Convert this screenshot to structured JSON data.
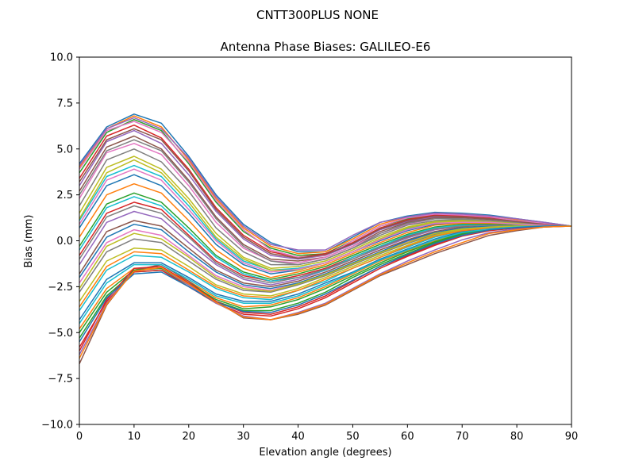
{
  "figure": {
    "suptitle": "CNTT300PLUS     NONE"
  },
  "chart_data": {
    "type": "line",
    "title": "Antenna Phase Biases: GALILEO-E6",
    "xlabel": "Elevation angle (degrees)",
    "ylabel": "Bias (mm)",
    "xlim": [
      0,
      90
    ],
    "ylim": [
      -10,
      10
    ],
    "xticks": [
      0,
      10,
      20,
      30,
      40,
      50,
      60,
      70,
      80,
      90
    ],
    "yticks": [
      -10.0,
      -7.5,
      -5.0,
      -2.5,
      0.0,
      2.5,
      5.0,
      7.5,
      10.0
    ],
    "xtick_labels": [
      "0",
      "10",
      "20",
      "30",
      "40",
      "50",
      "60",
      "70",
      "80",
      "90"
    ],
    "ytick_labels": [
      "−10.0",
      "−7.5",
      "−5.0",
      "−2.5",
      "0.0",
      "2.5",
      "5.0",
      "7.5",
      "10.0"
    ],
    "grid": false,
    "legend": "none",
    "palette": [
      "#1f77b4",
      "#ff7f0e",
      "#2ca02c",
      "#d62728",
      "#9467bd",
      "#8c564b",
      "#e377c2",
      "#7f7f7f",
      "#bcbd22",
      "#17becf"
    ],
    "x": [
      0,
      5,
      10,
      15,
      20,
      25,
      30,
      35,
      40,
      45,
      50,
      55,
      60,
      65,
      70,
      75,
      80,
      85,
      90
    ],
    "series": [
      {
        "values": [
          4.2,
          6.2,
          6.9,
          6.4,
          4.6,
          2.5,
          0.9,
          -0.1,
          -0.6,
          -0.6,
          0.2,
          1.0,
          1.35,
          1.55,
          1.5,
          1.4,
          1.2,
          1.0,
          0.8
        ]
      },
      {
        "values": [
          4.0,
          6.1,
          6.8,
          6.2,
          4.4,
          2.3,
          0.7,
          -0.3,
          -0.7,
          -0.6,
          0.1,
          0.9,
          1.3,
          1.5,
          1.45,
          1.35,
          1.15,
          0.95,
          0.8
        ]
      },
      {
        "values": [
          3.7,
          5.9,
          6.6,
          6.0,
          4.2,
          2.1,
          0.5,
          -0.4,
          -0.8,
          -0.7,
          0.0,
          0.8,
          1.2,
          1.45,
          1.4,
          1.3,
          1.1,
          0.95,
          0.8
        ]
      },
      {
        "values": [
          3.4,
          5.7,
          6.3,
          5.6,
          3.9,
          1.8,
          0.3,
          -0.6,
          -0.9,
          -0.7,
          -0.1,
          0.7,
          1.15,
          1.4,
          1.35,
          1.25,
          1.1,
          0.9,
          0.8
        ]
      },
      {
        "values": [
          3.0,
          5.4,
          6.0,
          5.3,
          3.6,
          1.6,
          0.1,
          -0.8,
          -1.0,
          -0.8,
          -0.2,
          0.6,
          1.05,
          1.3,
          1.3,
          1.2,
          1.05,
          0.9,
          0.8
        ]
      },
      {
        "values": [
          2.7,
          5.1,
          5.7,
          5.0,
          3.3,
          1.3,
          -0.2,
          -1.0,
          -1.1,
          -0.9,
          -0.3,
          0.5,
          1.0,
          1.25,
          1.25,
          1.15,
          1.0,
          0.9,
          0.8
        ]
      },
      {
        "values": [
          2.3,
          4.8,
          5.3,
          4.7,
          3.0,
          1.0,
          -0.4,
          -1.1,
          -1.2,
          -0.9,
          -0.3,
          0.4,
          0.9,
          1.2,
          1.2,
          1.1,
          1.0,
          0.9,
          0.8
        ]
      },
      {
        "values": [
          1.9,
          4.4,
          5.0,
          4.3,
          2.7,
          0.7,
          -0.6,
          -1.3,
          -1.3,
          -1.0,
          -0.4,
          0.3,
          0.85,
          1.1,
          1.15,
          1.1,
          0.95,
          0.85,
          0.8
        ]
      },
      {
        "values": [
          1.5,
          4.0,
          4.6,
          3.9,
          2.3,
          0.4,
          -0.9,
          -1.5,
          -1.4,
          -1.1,
          -0.5,
          0.2,
          0.75,
          1.05,
          1.1,
          1.05,
          0.95,
          0.85,
          0.8
        ]
      },
      {
        "values": [
          1.1,
          3.5,
          4.1,
          3.5,
          1.9,
          0.1,
          -1.1,
          -1.6,
          -1.5,
          -1.2,
          -0.6,
          0.1,
          0.65,
          1.0,
          1.05,
          1.0,
          0.9,
          0.85,
          0.8
        ]
      },
      {
        "values": [
          0.7,
          3.0,
          3.6,
          3.0,
          1.5,
          -0.2,
          -1.3,
          -1.8,
          -1.6,
          -1.2,
          -0.6,
          0.0,
          0.55,
          0.9,
          1.0,
          0.95,
          0.9,
          0.85,
          0.8
        ]
      },
      {
        "values": [
          0.2,
          2.5,
          3.1,
          2.6,
          1.1,
          -0.5,
          -1.5,
          -2.0,
          -1.7,
          -1.3,
          -0.7,
          -0.1,
          0.45,
          0.85,
          0.95,
          0.95,
          0.85,
          0.8,
          0.8
        ]
      },
      {
        "values": [
          -0.3,
          2.0,
          2.6,
          2.1,
          0.7,
          -0.8,
          -1.7,
          -2.1,
          -1.8,
          -1.4,
          -0.8,
          -0.2,
          0.35,
          0.75,
          0.9,
          0.9,
          0.85,
          0.8,
          0.8
        ]
      },
      {
        "values": [
          -0.8,
          1.5,
          2.1,
          1.7,
          0.3,
          -1.1,
          -1.9,
          -2.2,
          -1.9,
          -1.5,
          -0.9,
          -0.3,
          0.25,
          0.7,
          0.85,
          0.85,
          0.8,
          0.8,
          0.8
        ]
      },
      {
        "values": [
          -1.3,
          1.0,
          1.6,
          1.2,
          -0.1,
          -1.3,
          -2.1,
          -2.4,
          -2.1,
          -1.6,
          -1.0,
          -0.4,
          0.15,
          0.6,
          0.8,
          0.85,
          0.8,
          0.8,
          0.8
        ]
      },
      {
        "values": [
          -1.8,
          0.5,
          1.1,
          0.8,
          -0.4,
          -1.6,
          -2.3,
          -2.5,
          -2.2,
          -1.7,
          -1.1,
          -0.5,
          0.05,
          0.5,
          0.75,
          0.8,
          0.8,
          0.8,
          0.8
        ]
      },
      {
        "values": [
          -2.3,
          -0.1,
          0.6,
          0.3,
          -0.8,
          -1.9,
          -2.5,
          -2.7,
          -2.3,
          -1.8,
          -1.2,
          -0.6,
          -0.05,
          0.45,
          0.7,
          0.8,
          0.8,
          0.8,
          0.8
        ]
      },
      {
        "values": [
          -2.8,
          -0.6,
          0.1,
          -0.1,
          -1.1,
          -2.1,
          -2.7,
          -2.8,
          -2.4,
          -1.9,
          -1.3,
          -0.7,
          -0.15,
          0.35,
          0.65,
          0.75,
          0.8,
          0.8,
          0.8
        ]
      },
      {
        "values": [
          -3.3,
          -1.1,
          -0.4,
          -0.5,
          -1.4,
          -2.4,
          -2.9,
          -3.0,
          -2.6,
          -2.0,
          -1.4,
          -0.8,
          -0.25,
          0.3,
          0.6,
          0.75,
          0.8,
          0.8,
          0.8
        ]
      },
      {
        "values": [
          -3.8,
          -1.6,
          -0.8,
          -0.9,
          -1.7,
          -2.6,
          -3.1,
          -3.2,
          -2.7,
          -2.2,
          -1.5,
          -0.9,
          -0.35,
          0.2,
          0.55,
          0.7,
          0.75,
          0.8,
          0.8
        ]
      },
      {
        "values": [
          -4.3,
          -2.1,
          -1.2,
          -1.2,
          -2.0,
          -2.9,
          -3.3,
          -3.3,
          -2.9,
          -2.3,
          -1.7,
          -1.0,
          -0.45,
          0.1,
          0.5,
          0.7,
          0.75,
          0.8,
          0.8
        ]
      },
      {
        "values": [
          -4.8,
          -2.6,
          -1.5,
          -1.5,
          -2.2,
          -3.1,
          -3.6,
          -3.5,
          -3.1,
          -2.5,
          -1.8,
          -1.1,
          -0.55,
          0.0,
          0.45,
          0.65,
          0.75,
          0.8,
          0.8
        ]
      },
      {
        "values": [
          -5.3,
          -3.0,
          -1.7,
          -1.6,
          -2.4,
          -3.3,
          -3.8,
          -3.8,
          -3.4,
          -2.8,
          -2.0,
          -1.3,
          -0.7,
          -0.1,
          0.35,
          0.6,
          0.75,
          0.8,
          0.8
        ]
      },
      {
        "values": [
          -5.8,
          -3.3,
          -1.7,
          -1.6,
          -2.5,
          -3.4,
          -4.0,
          -4.1,
          -3.7,
          -3.1,
          -2.3,
          -1.5,
          -0.85,
          -0.25,
          0.25,
          0.55,
          0.7,
          0.8,
          0.8
        ]
      },
      {
        "values": [
          -6.2,
          -3.4,
          -1.6,
          -1.5,
          -2.4,
          -3.4,
          -4.1,
          -4.3,
          -3.9,
          -3.4,
          -2.6,
          -1.8,
          -1.1,
          -0.5,
          0.05,
          0.45,
          0.65,
          0.75,
          0.8
        ]
      },
      {
        "values": [
          -6.7,
          -3.5,
          -1.6,
          -1.3,
          -2.2,
          -3.3,
          -4.2,
          -4.3,
          -4.0,
          -3.5,
          -2.7,
          -1.9,
          -1.3,
          -0.7,
          -0.2,
          0.3,
          0.55,
          0.75,
          0.8
        ]
      },
      {
        "values": [
          3.9,
          6.0,
          6.5,
          5.9,
          4.3,
          2.2,
          0.6,
          -0.5,
          -0.9,
          -0.8,
          0.0,
          0.8,
          1.25,
          1.45,
          1.4,
          1.3,
          1.1,
          0.95,
          0.8
        ]
      },
      {
        "values": [
          2.5,
          4.9,
          5.5,
          4.9,
          3.2,
          1.2,
          -0.3,
          -1.1,
          -1.3,
          -1.0,
          -0.4,
          0.4,
          0.95,
          1.2,
          1.2,
          1.1,
          1.0,
          0.9,
          0.8
        ]
      },
      {
        "values": [
          1.2,
          3.7,
          4.4,
          3.7,
          2.1,
          0.2,
          -1.0,
          -1.6,
          -1.6,
          -1.2,
          -0.6,
          0.1,
          0.7,
          1.0,
          1.05,
          1.0,
          0.9,
          0.85,
          0.8
        ]
      },
      {
        "values": [
          -0.5,
          1.8,
          2.4,
          1.9,
          0.5,
          -0.9,
          -1.8,
          -2.2,
          -2.0,
          -1.6,
          -0.9,
          -0.3,
          0.3,
          0.7,
          0.85,
          0.85,
          0.8,
          0.8,
          0.8
        ]
      },
      {
        "values": [
          -2.0,
          0.2,
          0.9,
          0.6,
          -0.6,
          -1.7,
          -2.4,
          -2.6,
          -2.3,
          -1.8,
          -1.2,
          -0.6,
          0.0,
          0.45,
          0.7,
          0.8,
          0.8,
          0.8,
          0.8
        ]
      },
      {
        "values": [
          -3.6,
          -1.4,
          -0.6,
          -0.7,
          -1.6,
          -2.5,
          -3.0,
          -3.1,
          -2.7,
          -2.1,
          -1.5,
          -0.9,
          -0.3,
          0.25,
          0.55,
          0.7,
          0.75,
          0.8,
          0.8
        ]
      },
      {
        "values": [
          -5.0,
          -2.8,
          -1.6,
          -1.5,
          -2.3,
          -3.2,
          -3.7,
          -3.6,
          -3.2,
          -2.6,
          -1.9,
          -1.2,
          -0.6,
          -0.05,
          0.4,
          0.65,
          0.75,
          0.8,
          0.8
        ]
      },
      {
        "values": [
          -6.0,
          -3.2,
          -1.5,
          -1.4,
          -2.3,
          -3.3,
          -3.9,
          -4.0,
          -3.6,
          -3.0,
          -2.2,
          -1.4,
          -0.8,
          -0.2,
          0.3,
          0.6,
          0.7,
          0.8,
          0.8
        ]
      },
      {
        "values": [
          4.1,
          6.1,
          6.7,
          6.1,
          4.5,
          2.4,
          0.8,
          -0.2,
          -0.5,
          -0.5,
          0.3,
          1.0,
          1.3,
          1.5,
          1.45,
          1.35,
          1.2,
          1.0,
          0.8
        ]
      },
      {
        "values": [
          3.2,
          5.5,
          6.1,
          5.5,
          3.8,
          1.7,
          0.2,
          -0.7,
          -0.95,
          -0.75,
          -0.15,
          0.65,
          1.1,
          1.35,
          1.3,
          1.2,
          1.05,
          0.9,
          0.8
        ]
      },
      {
        "values": [
          0.9,
          3.3,
          3.9,
          3.3,
          1.7,
          0.0,
          -1.2,
          -1.7,
          -1.55,
          -1.2,
          -0.6,
          0.05,
          0.6,
          0.95,
          1.0,
          1.0,
          0.9,
          0.85,
          0.8
        ]
      },
      {
        "values": [
          -1.0,
          1.3,
          1.9,
          1.5,
          0.2,
          -1.2,
          -2.0,
          -2.3,
          -2.0,
          -1.55,
          -1.0,
          -0.35,
          0.2,
          0.65,
          0.8,
          0.85,
          0.8,
          0.8,
          0.8
        ]
      },
      {
        "values": [
          -2.6,
          -0.3,
          0.4,
          0.1,
          -0.9,
          -2.0,
          -2.6,
          -2.75,
          -2.35,
          -1.85,
          -1.25,
          -0.65,
          -0.1,
          0.4,
          0.65,
          0.75,
          0.8,
          0.8,
          0.8
        ]
      },
      {
        "values": [
          -4.5,
          -2.3,
          -1.3,
          -1.3,
          -2.1,
          -3.0,
          -3.4,
          -3.4,
          -3.0,
          -2.4,
          -1.75,
          -1.05,
          -0.5,
          0.05,
          0.45,
          0.65,
          0.75,
          0.8,
          0.8
        ]
      },
      {
        "values": [
          -5.5,
          -3.1,
          -1.8,
          -1.7,
          -2.5,
          -3.35,
          -3.85,
          -3.9,
          -3.5,
          -2.9,
          -2.15,
          -1.4,
          -0.75,
          -0.15,
          0.3,
          0.6,
          0.72,
          0.8,
          0.8
        ]
      },
      {
        "values": [
          -6.4,
          -3.45,
          -1.65,
          -1.45,
          -2.35,
          -3.35,
          -4.15,
          -4.3,
          -3.95,
          -3.45,
          -2.65,
          -1.85,
          -1.2,
          -0.6,
          -0.1,
          0.4,
          0.6,
          0.75,
          0.8
        ]
      }
    ]
  }
}
